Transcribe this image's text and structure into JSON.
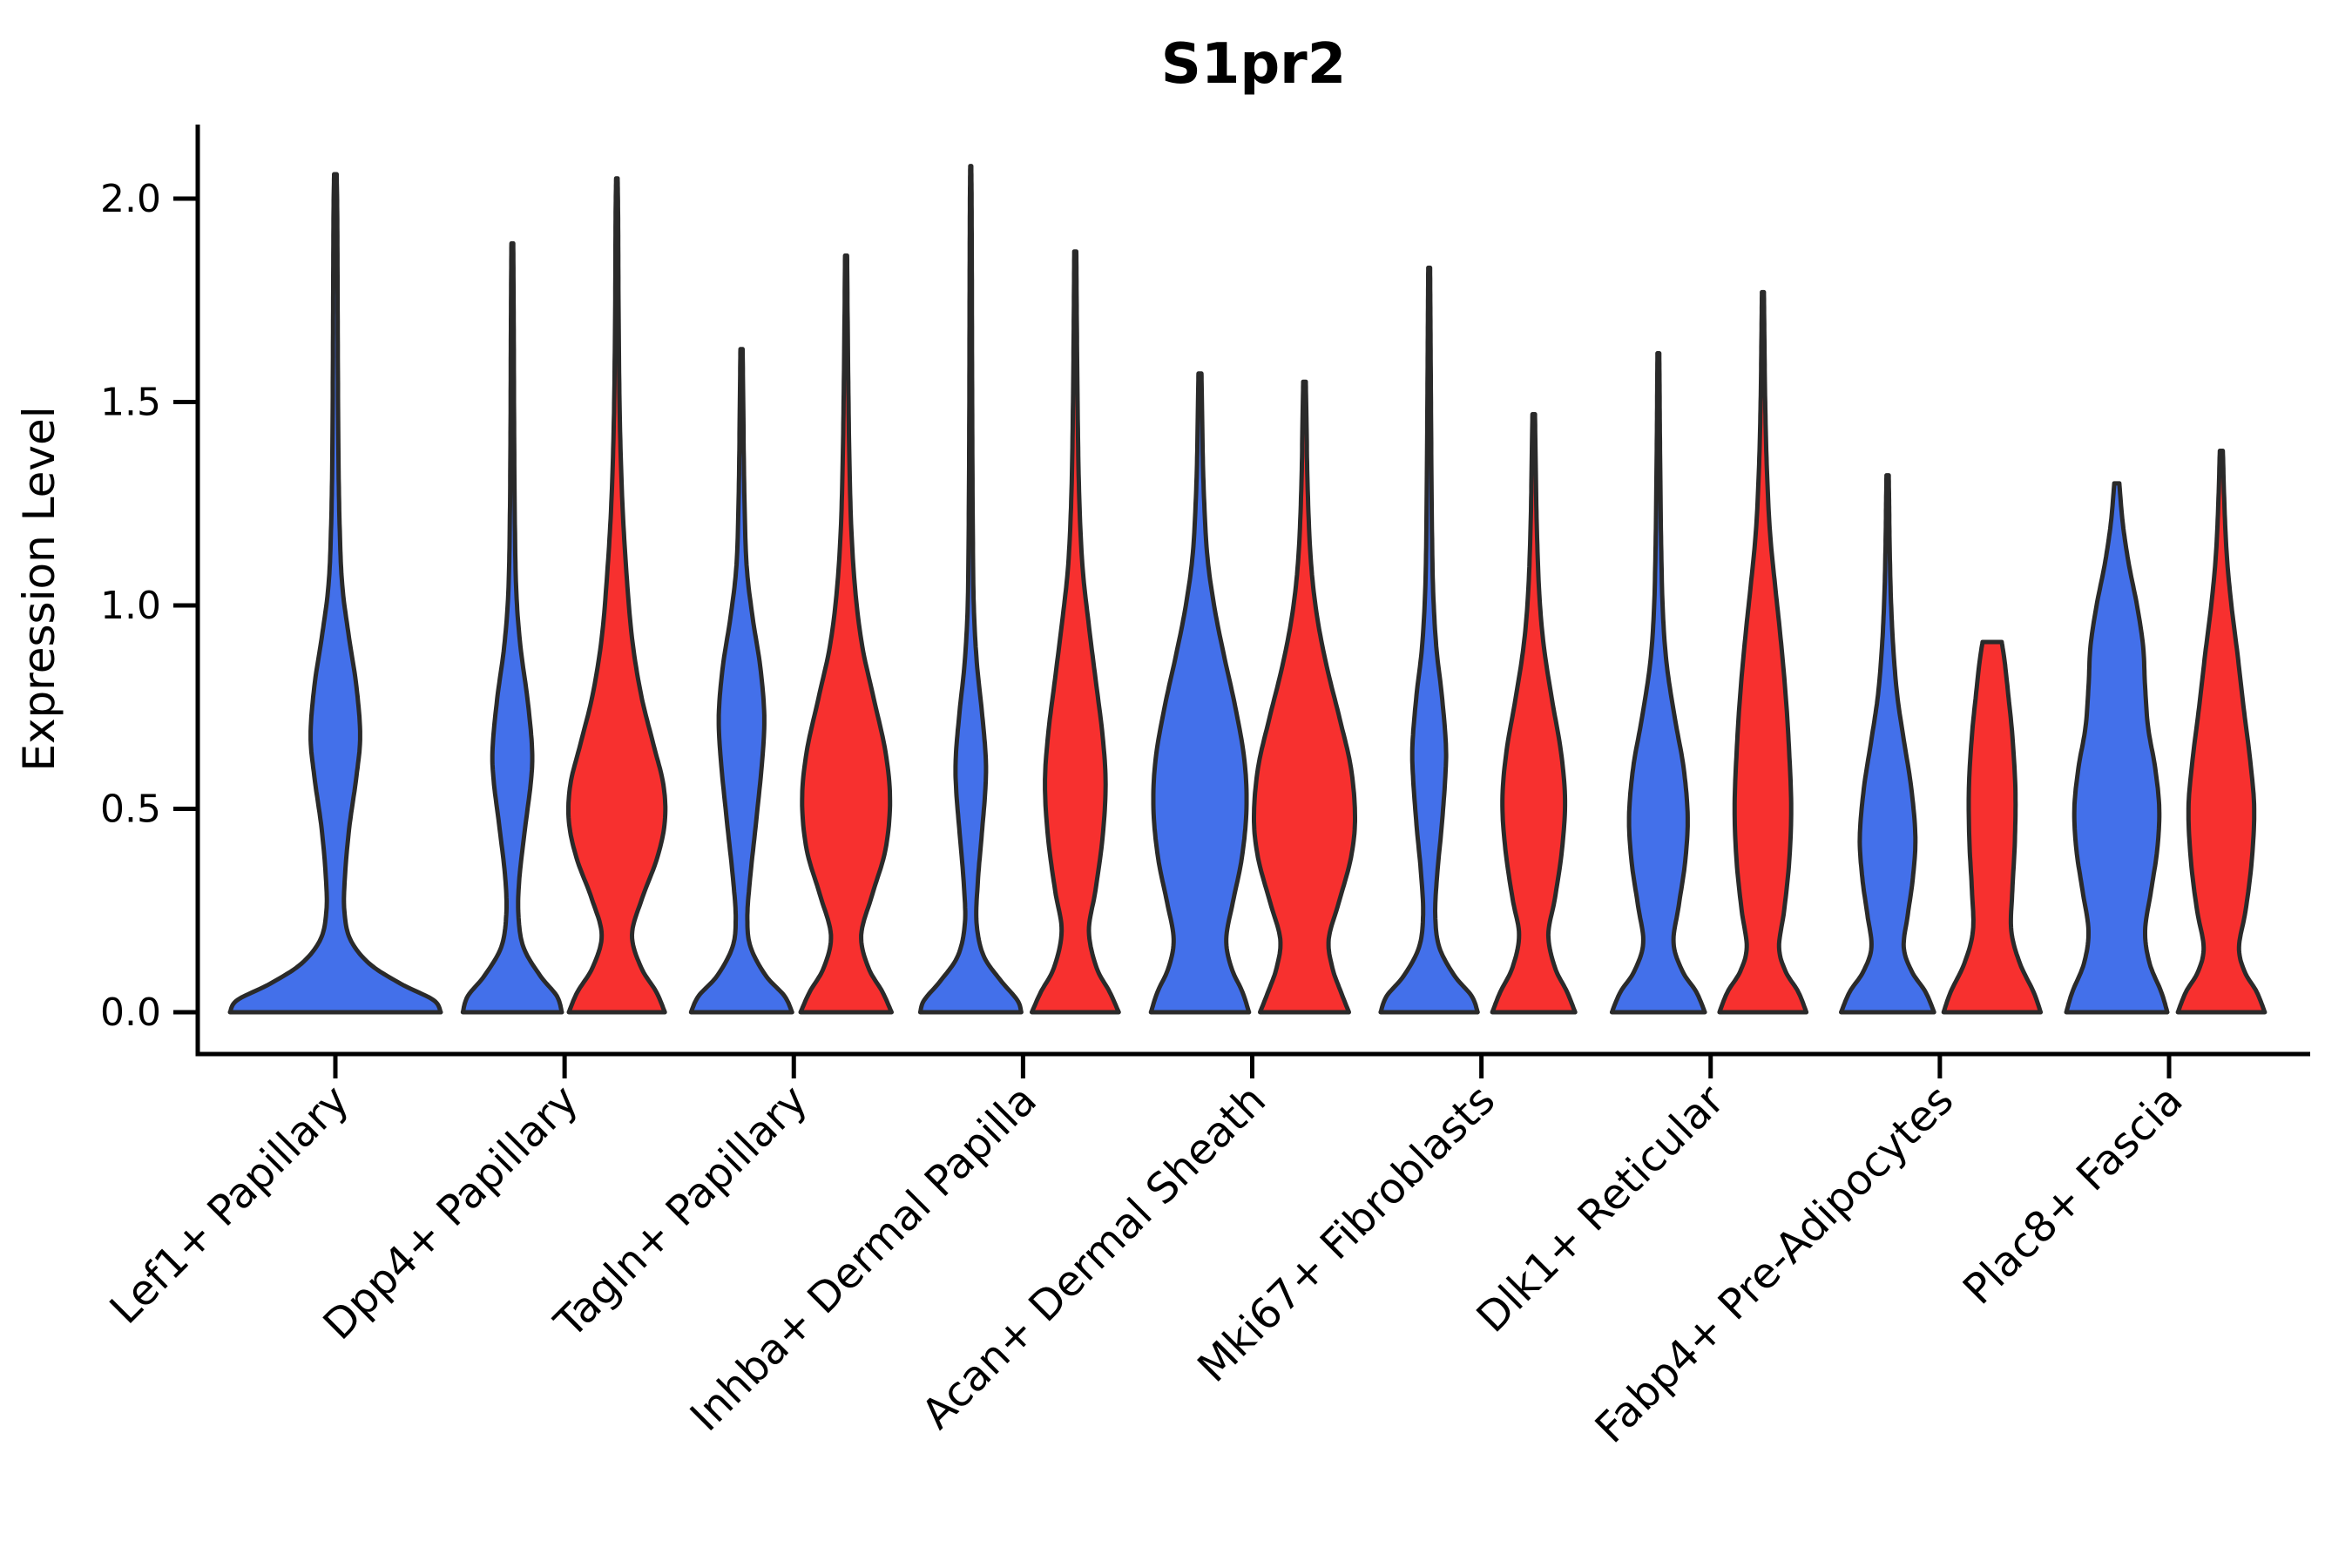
{
  "chart_data": {
    "type": "violin",
    "title": "S1pr2",
    "ylabel": "Expression Level",
    "xlabel": "",
    "yticks": [
      "0.0",
      "0.5",
      "1.0",
      "1.5",
      "2.0"
    ],
    "ytick_values": [
      0,
      0.5,
      1.0,
      1.5,
      2.0
    ],
    "ylim": [
      0,
      2.18
    ],
    "grid": "off",
    "legend": "none",
    "categories": [
      "Lef1+ Papillary",
      "Dpp4+ Papillary",
      "Tagln+ Papillary",
      "Inhba+ Dermal Papilla",
      "Acan+ Dermal Sheath",
      "Mki67+ Fibroblasts",
      "Dlk1+ Reticular",
      "Fabp4+ Pre-Adipocytes",
      "Plac8+ Fascia"
    ],
    "colors": {
      "blue": "#4370EA",
      "red": "#F7302F",
      "outline": "#2A2A2A",
      "axis": "#000000"
    },
    "violins": [
      {
        "category_index": 0,
        "side": "single",
        "color": "blue",
        "max": 2.06,
        "profile": [
          [
            0,
            1.0
          ],
          [
            0.03,
            0.93
          ],
          [
            0.07,
            0.62
          ],
          [
            0.12,
            0.32
          ],
          [
            0.18,
            0.14
          ],
          [
            0.25,
            0.085
          ],
          [
            0.33,
            0.09
          ],
          [
            0.45,
            0.13
          ],
          [
            0.58,
            0.2
          ],
          [
            0.68,
            0.235
          ],
          [
            0.8,
            0.2
          ],
          [
            0.92,
            0.13
          ],
          [
            1.05,
            0.065
          ],
          [
            1.2,
            0.04
          ],
          [
            1.4,
            0.028
          ],
          [
            1.7,
            0.022
          ],
          [
            1.95,
            0.018
          ],
          [
            2.06,
            0.012
          ]
        ]
      },
      {
        "category_index": 1,
        "side": "left",
        "color": "blue",
        "max": 1.89,
        "profile": [
          [
            0,
            0.98
          ],
          [
            0.04,
            0.88
          ],
          [
            0.09,
            0.55
          ],
          [
            0.16,
            0.22
          ],
          [
            0.24,
            0.12
          ],
          [
            0.33,
            0.14
          ],
          [
            0.45,
            0.25
          ],
          [
            0.57,
            0.37
          ],
          [
            0.65,
            0.39
          ],
          [
            0.77,
            0.3
          ],
          [
            0.9,
            0.16
          ],
          [
            1.03,
            0.08
          ],
          [
            1.2,
            0.05
          ],
          [
            1.45,
            0.035
          ],
          [
            1.7,
            0.028
          ],
          [
            1.89,
            0.018
          ]
        ]
      },
      {
        "category_index": 1,
        "side": "right",
        "color": "red",
        "max": 2.05,
        "profile": [
          [
            0,
            0.95
          ],
          [
            0.05,
            0.78
          ],
          [
            0.11,
            0.48
          ],
          [
            0.19,
            0.3
          ],
          [
            0.28,
            0.5
          ],
          [
            0.38,
            0.8
          ],
          [
            0.47,
            0.95
          ],
          [
            0.56,
            0.92
          ],
          [
            0.66,
            0.72
          ],
          [
            0.78,
            0.48
          ],
          [
            0.92,
            0.3
          ],
          [
            1.08,
            0.19
          ],
          [
            1.25,
            0.11
          ],
          [
            1.45,
            0.06
          ],
          [
            1.7,
            0.035
          ],
          [
            1.95,
            0.025
          ],
          [
            2.05,
            0.015
          ]
        ]
      },
      {
        "category_index": 2,
        "side": "left",
        "color": "blue",
        "max": 1.63,
        "profile": [
          [
            0,
            1.0
          ],
          [
            0.04,
            0.85
          ],
          [
            0.09,
            0.48
          ],
          [
            0.16,
            0.18
          ],
          [
            0.23,
            0.115
          ],
          [
            0.33,
            0.17
          ],
          [
            0.47,
            0.29
          ],
          [
            0.62,
            0.41
          ],
          [
            0.73,
            0.45
          ],
          [
            0.85,
            0.37
          ],
          [
            0.97,
            0.22
          ],
          [
            1.1,
            0.1
          ],
          [
            1.28,
            0.055
          ],
          [
            1.48,
            0.035
          ],
          [
            1.63,
            0.022
          ]
        ]
      },
      {
        "category_index": 2,
        "side": "right",
        "color": "red",
        "max": 1.86,
        "profile": [
          [
            0,
            0.9
          ],
          [
            0.05,
            0.72
          ],
          [
            0.11,
            0.44
          ],
          [
            0.19,
            0.3
          ],
          [
            0.29,
            0.52
          ],
          [
            0.4,
            0.78
          ],
          [
            0.52,
            0.87
          ],
          [
            0.64,
            0.78
          ],
          [
            0.77,
            0.55
          ],
          [
            0.9,
            0.32
          ],
          [
            1.04,
            0.18
          ],
          [
            1.2,
            0.1
          ],
          [
            1.4,
            0.06
          ],
          [
            1.65,
            0.035
          ],
          [
            1.86,
            0.02
          ]
        ]
      },
      {
        "category_index": 3,
        "side": "left",
        "color": "blue",
        "max": 2.08,
        "profile": [
          [
            0,
            1.0
          ],
          [
            0.03,
            0.92
          ],
          [
            0.08,
            0.58
          ],
          [
            0.14,
            0.25
          ],
          [
            0.22,
            0.115
          ],
          [
            0.32,
            0.14
          ],
          [
            0.44,
            0.22
          ],
          [
            0.55,
            0.29
          ],
          [
            0.63,
            0.295
          ],
          [
            0.74,
            0.22
          ],
          [
            0.86,
            0.12
          ],
          [
            1.0,
            0.06
          ],
          [
            1.2,
            0.04
          ],
          [
            1.5,
            0.028
          ],
          [
            1.8,
            0.022
          ],
          [
            2.0,
            0.016
          ],
          [
            2.08,
            0.01
          ]
        ]
      },
      {
        "category_index": 3,
        "side": "right",
        "color": "red",
        "max": 1.87,
        "profile": [
          [
            0,
            0.86
          ],
          [
            0.05,
            0.68
          ],
          [
            0.11,
            0.42
          ],
          [
            0.2,
            0.27
          ],
          [
            0.3,
            0.4
          ],
          [
            0.43,
            0.54
          ],
          [
            0.56,
            0.6
          ],
          [
            0.68,
            0.54
          ],
          [
            0.82,
            0.4
          ],
          [
            0.96,
            0.26
          ],
          [
            1.1,
            0.14
          ],
          [
            1.28,
            0.075
          ],
          [
            1.5,
            0.045
          ],
          [
            1.7,
            0.03
          ],
          [
            1.87,
            0.02
          ]
        ]
      },
      {
        "category_index": 4,
        "side": "left",
        "color": "blue",
        "max": 1.57,
        "profile": [
          [
            0,
            0.97
          ],
          [
            0.05,
            0.84
          ],
          [
            0.11,
            0.62
          ],
          [
            0.18,
            0.52
          ],
          [
            0.27,
            0.65
          ],
          [
            0.38,
            0.83
          ],
          [
            0.5,
            0.92
          ],
          [
            0.62,
            0.88
          ],
          [
            0.75,
            0.7
          ],
          [
            0.88,
            0.47
          ],
          [
            1.0,
            0.28
          ],
          [
            1.13,
            0.14
          ],
          [
            1.3,
            0.07
          ],
          [
            1.45,
            0.045
          ],
          [
            1.57,
            0.03
          ]
        ]
      },
      {
        "category_index": 4,
        "side": "right",
        "color": "red",
        "max": 1.55,
        "profile": [
          [
            0,
            0.88
          ],
          [
            0.05,
            0.72
          ],
          [
            0.11,
            0.55
          ],
          [
            0.18,
            0.48
          ],
          [
            0.27,
            0.68
          ],
          [
            0.38,
            0.92
          ],
          [
            0.48,
            1.0
          ],
          [
            0.6,
            0.92
          ],
          [
            0.72,
            0.7
          ],
          [
            0.85,
            0.44
          ],
          [
            0.98,
            0.24
          ],
          [
            1.12,
            0.12
          ],
          [
            1.3,
            0.06
          ],
          [
            1.45,
            0.04
          ],
          [
            1.55,
            0.025
          ]
        ]
      },
      {
        "category_index": 5,
        "side": "left",
        "color": "blue",
        "max": 1.83,
        "profile": [
          [
            0,
            0.96
          ],
          [
            0.04,
            0.84
          ],
          [
            0.09,
            0.5
          ],
          [
            0.16,
            0.2
          ],
          [
            0.24,
            0.12
          ],
          [
            0.34,
            0.16
          ],
          [
            0.46,
            0.25
          ],
          [
            0.58,
            0.32
          ],
          [
            0.66,
            0.33
          ],
          [
            0.78,
            0.25
          ],
          [
            0.9,
            0.14
          ],
          [
            1.05,
            0.075
          ],
          [
            1.25,
            0.05
          ],
          [
            1.5,
            0.035
          ],
          [
            1.7,
            0.025
          ],
          [
            1.83,
            0.018
          ]
        ]
      },
      {
        "category_index": 5,
        "side": "right",
        "color": "red",
        "max": 1.47,
        "profile": [
          [
            0,
            0.82
          ],
          [
            0.05,
            0.66
          ],
          [
            0.11,
            0.42
          ],
          [
            0.19,
            0.29
          ],
          [
            0.28,
            0.42
          ],
          [
            0.4,
            0.56
          ],
          [
            0.52,
            0.62
          ],
          [
            0.64,
            0.54
          ],
          [
            0.77,
            0.36
          ],
          [
            0.9,
            0.2
          ],
          [
            1.03,
            0.11
          ],
          [
            1.2,
            0.06
          ],
          [
            1.35,
            0.04
          ],
          [
            1.47,
            0.025
          ]
        ]
      },
      {
        "category_index": 6,
        "side": "left",
        "color": "blue",
        "max": 1.62,
        "profile": [
          [
            0,
            0.92
          ],
          [
            0.05,
            0.75
          ],
          [
            0.1,
            0.48
          ],
          [
            0.17,
            0.3
          ],
          [
            0.26,
            0.4
          ],
          [
            0.37,
            0.53
          ],
          [
            0.48,
            0.58
          ],
          [
            0.6,
            0.5
          ],
          [
            0.72,
            0.33
          ],
          [
            0.85,
            0.17
          ],
          [
            0.98,
            0.09
          ],
          [
            1.15,
            0.055
          ],
          [
            1.35,
            0.035
          ],
          [
            1.5,
            0.025
          ],
          [
            1.62,
            0.018
          ]
        ]
      },
      {
        "category_index": 6,
        "side": "right",
        "color": "red",
        "max": 1.77,
        "profile": [
          [
            0,
            0.86
          ],
          [
            0.05,
            0.7
          ],
          [
            0.1,
            0.45
          ],
          [
            0.16,
            0.32
          ],
          [
            0.25,
            0.42
          ],
          [
            0.37,
            0.52
          ],
          [
            0.5,
            0.56
          ],
          [
            0.64,
            0.52
          ],
          [
            0.78,
            0.45
          ],
          [
            0.92,
            0.35
          ],
          [
            1.05,
            0.24
          ],
          [
            1.18,
            0.14
          ],
          [
            1.33,
            0.08
          ],
          [
            1.5,
            0.045
          ],
          [
            1.65,
            0.03
          ],
          [
            1.77,
            0.02
          ]
        ]
      },
      {
        "category_index": 7,
        "side": "left",
        "color": "blue",
        "max": 1.32,
        "profile": [
          [
            0,
            0.92
          ],
          [
            0.05,
            0.75
          ],
          [
            0.1,
            0.48
          ],
          [
            0.16,
            0.32
          ],
          [
            0.24,
            0.4
          ],
          [
            0.33,
            0.5
          ],
          [
            0.43,
            0.55
          ],
          [
            0.55,
            0.47
          ],
          [
            0.67,
            0.32
          ],
          [
            0.78,
            0.19
          ],
          [
            0.9,
            0.11
          ],
          [
            1.02,
            0.065
          ],
          [
            1.15,
            0.04
          ],
          [
            1.25,
            0.03
          ],
          [
            1.32,
            0.022
          ]
        ]
      },
      {
        "category_index": 7,
        "side": "right",
        "color": "red",
        "max": 0.91,
        "profile": [
          [
            0,
            0.96
          ],
          [
            0.05,
            0.82
          ],
          [
            0.12,
            0.55
          ],
          [
            0.2,
            0.38
          ],
          [
            0.3,
            0.4
          ],
          [
            0.42,
            0.45
          ],
          [
            0.55,
            0.46
          ],
          [
            0.68,
            0.4
          ],
          [
            0.78,
            0.32
          ],
          [
            0.86,
            0.25
          ],
          [
            0.91,
            0.19
          ]
        ]
      },
      {
        "category_index": 8,
        "side": "left",
        "color": "blue",
        "max": 1.3,
        "profile": [
          [
            0,
            1.0
          ],
          [
            0.05,
            0.88
          ],
          [
            0.12,
            0.65
          ],
          [
            0.2,
            0.56
          ],
          [
            0.3,
            0.68
          ],
          [
            0.4,
            0.8
          ],
          [
            0.5,
            0.84
          ],
          [
            0.6,
            0.76
          ],
          [
            0.7,
            0.62
          ],
          [
            0.8,
            0.56
          ],
          [
            0.9,
            0.52
          ],
          [
            1.0,
            0.4
          ],
          [
            1.1,
            0.24
          ],
          [
            1.2,
            0.12
          ],
          [
            1.3,
            0.05
          ]
        ]
      },
      {
        "category_index": 8,
        "side": "right",
        "color": "red",
        "max": 1.38,
        "profile": [
          [
            0,
            0.86
          ],
          [
            0.05,
            0.7
          ],
          [
            0.1,
            0.46
          ],
          [
            0.16,
            0.35
          ],
          [
            0.25,
            0.48
          ],
          [
            0.37,
            0.6
          ],
          [
            0.5,
            0.65
          ],
          [
            0.62,
            0.57
          ],
          [
            0.75,
            0.44
          ],
          [
            0.88,
            0.32
          ],
          [
            1.0,
            0.2
          ],
          [
            1.12,
            0.11
          ],
          [
            1.25,
            0.06
          ],
          [
            1.38,
            0.03
          ]
        ]
      }
    ]
  }
}
